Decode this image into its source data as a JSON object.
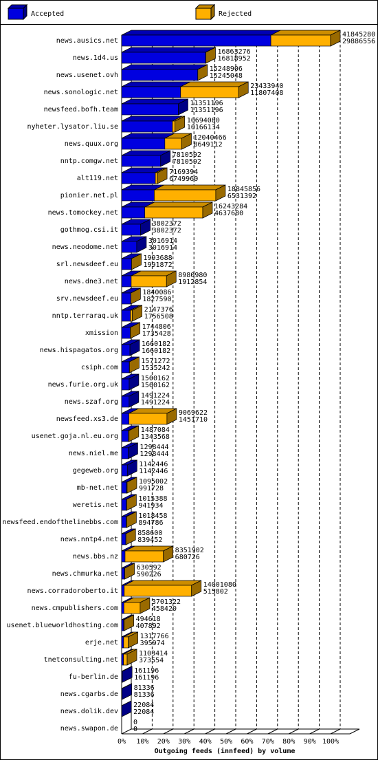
{
  "chart_data": {
    "type": "bar3d",
    "title": "Outgoing feeds (innfeed) by volume",
    "legend": [
      {
        "name": "Accepted",
        "color": "#0000e0"
      },
      {
        "name": "Rejected",
        "color": "#ffb000"
      }
    ],
    "categories": [
      "news.ausics.net",
      "news.1d4.us",
      "news.usenet.ovh",
      "news.sonologic.net",
      "newsfeed.bofh.team",
      "nyheter.lysator.liu.se",
      "news.quux.org",
      "nntp.comgw.net",
      "alt119.net",
      "pionier.net.pl",
      "news.tomockey.net",
      "gothmog.csi.it",
      "news.neodome.net",
      "srl.newsdeef.eu",
      "news.dne3.net",
      "srv.newsdeef.eu",
      "nntp.terraraq.uk",
      "xmission",
      "news.hispagatos.org",
      "csiph.com",
      "news.furie.org.uk",
      "news.szaf.org",
      "newsfeed.xs3.de",
      "usenet.goja.nl.eu.org",
      "news.niel.me",
      "gegeweb.org",
      "mb-net.net",
      "weretis.net",
      "newsfeed.endofthelinebbs.com",
      "news.nntp4.net",
      "news.bbs.nz",
      "news.chmurka.net",
      "news.corradoroberto.it",
      "news.cmpublishers.com",
      "usenet.blueworldhosting.com",
      "erje.net",
      "tnetconsulting.net",
      "fu-berlin.de",
      "news.cgarbs.de",
      "news.dolik.dev",
      "news.swapon.de"
    ],
    "offered": [
      41845280,
      16863276,
      15248906,
      23433940,
      11351196,
      10694080,
      12040466,
      7810592,
      7169394,
      18845856,
      16243284,
      3802372,
      3016914,
      1993688,
      8980980,
      1840086,
      2147376,
      1744806,
      1660182,
      1571272,
      1500162,
      1491224,
      9069622,
      1487084,
      1298444,
      1142446,
      1095002,
      1015388,
      1018458,
      858600,
      8351902,
      630592,
      14001080,
      3701322,
      494618,
      1317766,
      1103414,
      161196,
      81336,
      22084,
      0
    ],
    "accepted": [
      29886556,
      16818952,
      15245048,
      11807408,
      11351196,
      10166134,
      8649112,
      7810592,
      6749960,
      6531392,
      4637680,
      3802372,
      3016914,
      1991872,
      1912854,
      1827590,
      1756508,
      1735428,
      1660182,
      1535242,
      1500162,
      1491224,
      1451710,
      1343568,
      1298444,
      1142446,
      991728,
      941934,
      894786,
      839452,
      680726,
      590226,
      515802,
      458420,
      407892,
      395974,
      373554,
      161196,
      81336,
      22084,
      0
    ],
    "xlim": [
      0,
      41845280
    ],
    "xticks": [
      {
        "value": 0,
        "label": "0%"
      },
      {
        "value": 4184528,
        "label": "10%"
      },
      {
        "value": 8369056,
        "label": "20%"
      },
      {
        "value": 12553584,
        "label": "30%"
      },
      {
        "value": 16738112,
        "label": "40%"
      },
      {
        "value": 20922640,
        "label": "50%"
      },
      {
        "value": 25107168,
        "label": "60%"
      },
      {
        "value": 29291696,
        "label": "70%"
      },
      {
        "value": 33476224,
        "label": "80%"
      },
      {
        "value": 37660752,
        "label": "90%"
      },
      {
        "value": 41845280,
        "label": "100%"
      }
    ],
    "grid": true
  }
}
